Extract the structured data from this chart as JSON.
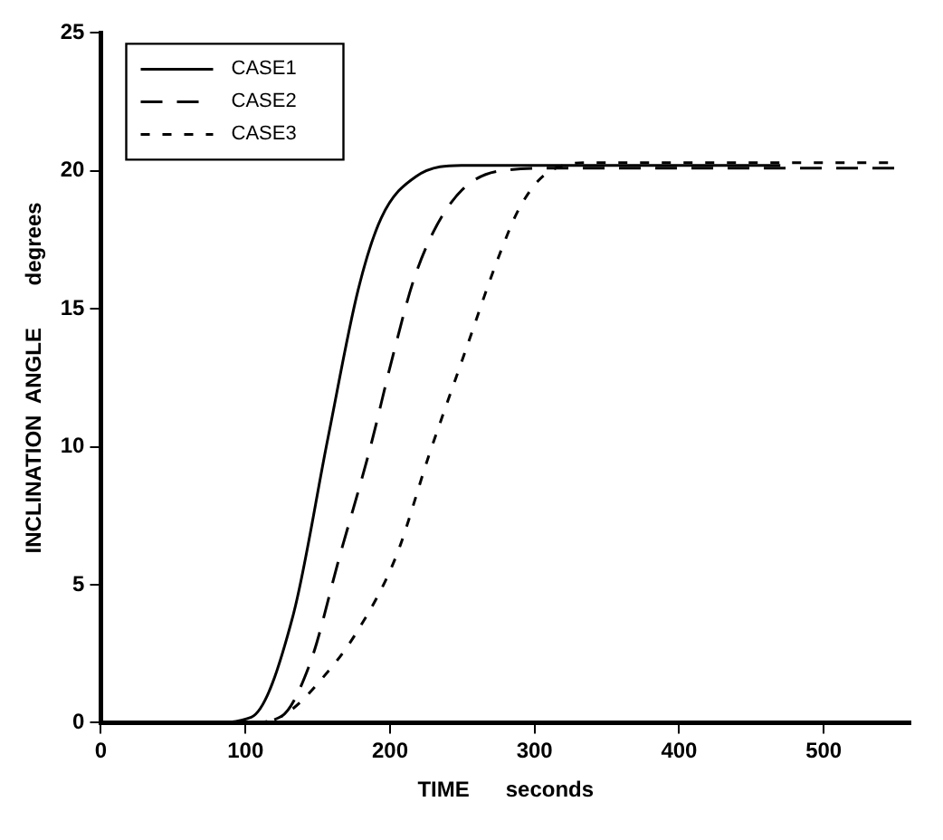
{
  "chart_data": {
    "type": "line",
    "xlabel": "TIME      seconds",
    "ylabel": "INCLINATION  ANGLE       degrees",
    "xlim": [
      0,
      560
    ],
    "xticks": [
      0,
      100,
      200,
      300,
      400,
      500
    ],
    "ylim": [
      0,
      25
    ],
    "yticks": [
      0,
      5,
      10,
      15,
      20,
      25
    ],
    "grid": false,
    "legend": "top left",
    "marker": "none",
    "series": [
      {
        "name": "CASE1",
        "color": "#000000",
        "line_style": "solid",
        "x": [
          0,
          75,
          104,
          133,
          157,
          178,
          194,
          218,
          251,
          300,
          400,
          470
        ],
        "values": [
          0,
          0,
          0.2,
          3.9,
          10.3,
          15.7,
          18.3,
          19.8,
          20.2,
          20.2,
          20.2,
          20.2
        ]
      },
      {
        "name": "CASE2",
        "color": "#000000",
        "line_style": "dashed",
        "x": [
          0,
          100,
          124,
          145,
          165,
          186,
          202,
          218,
          243,
          276,
          320,
          400,
          550
        ],
        "values": [
          0,
          0,
          0.2,
          2.2,
          6,
          9.9,
          13.3,
          16.3,
          18.9,
          20,
          20.1,
          20.1,
          20.1
        ]
      },
      {
        "name": "CASE3",
        "color": "#000000",
        "line_style": "dotted",
        "x": [
          0,
          110,
          130,
          153,
          176,
          204,
          227,
          251,
          276,
          290,
          308,
          340,
          450,
          550
        ],
        "values": [
          0,
          0,
          0.4,
          1.6,
          3.2,
          6,
          9.7,
          13.3,
          17,
          18.7,
          19.9,
          20.3,
          20.3,
          20.3
        ]
      }
    ]
  }
}
